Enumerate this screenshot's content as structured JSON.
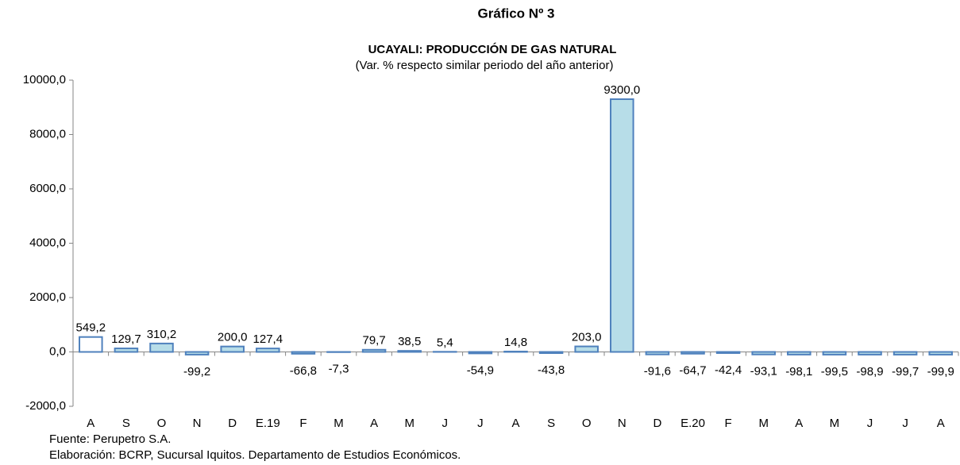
{
  "chart_data": {
    "type": "bar",
    "title": "Gráfico Nº 3",
    "subtitle": "UCAYALI: PRODUCCIÓN DE GAS NATURAL",
    "subtitle2": "(Var. % respecto similar periodo del año anterior)",
    "categories": [
      "A",
      "S",
      "O",
      "N",
      "D",
      "E.19",
      "F",
      "M",
      "A",
      "M",
      "J",
      "J",
      "A",
      "S",
      "O",
      "N",
      "D",
      "E.20",
      "F",
      "M",
      "A",
      "M",
      "J",
      "J",
      "A"
    ],
    "values": [
      549.2,
      129.7,
      310.2,
      -99.2,
      200.0,
      127.4,
      -66.8,
      -7.3,
      79.7,
      38.5,
      5.4,
      -54.9,
      14.8,
      -43.8,
      203.0,
      9300.0,
      -91.6,
      -64.7,
      -42.4,
      -93.1,
      -98.1,
      -99.5,
      -98.9,
      -99.7,
      -99.9
    ],
    "value_labels": [
      "549,2",
      "129,7",
      "310,2",
      "-99,2",
      "200,0",
      "127,4",
      "-66,8",
      "-7,3",
      "79,7",
      "38,5",
      "5,4",
      "-54,9",
      "14,8",
      "-43,8",
      "203,0",
      "9300,0",
      "-91,6",
      "-64,7",
      "-42,4",
      "-93,1",
      "-98,1",
      "-99,5",
      "-98,9",
      "-99,7",
      "-99,9"
    ],
    "colors": [
      "#ffffff",
      "#b7dde8",
      "#b7dde8",
      "#b7dde8",
      "#b7dde8",
      "#b7dde8",
      "#b7dde8",
      "#b7dde8",
      "#b7dde8",
      "#b7dde8",
      "#b7dde8",
      "#b7dde8",
      "#b7dde8",
      "#b7dde8",
      "#b7dde8",
      "#b7dde8",
      "#b7dde8",
      "#b7dde8",
      "#b7dde8",
      "#b7dde8",
      "#b7dde8",
      "#b7dde8",
      "#b7dde8",
      "#b7dde8",
      "#b7dde8"
    ],
    "edge_color": "#4f81bd",
    "ylim": [
      -2000,
      10000
    ],
    "yticks": [
      {
        "value": -2000,
        "label": "-2000,0"
      },
      {
        "value": 0,
        "label": "0,0"
      },
      {
        "value": 2000,
        "label": "2000,0"
      },
      {
        "value": 4000,
        "label": "4000,0"
      },
      {
        "value": 6000,
        "label": "6000,0"
      },
      {
        "value": 8000,
        "label": "8000,0"
      },
      {
        "value": 10000,
        "label": "10000,0"
      }
    ],
    "grid": false,
    "source": "Fuente: Perupetro S.A.",
    "note": "Elaboración: BCRP, Sucursal Iquitos. Departamento de Estudios Económicos."
  }
}
